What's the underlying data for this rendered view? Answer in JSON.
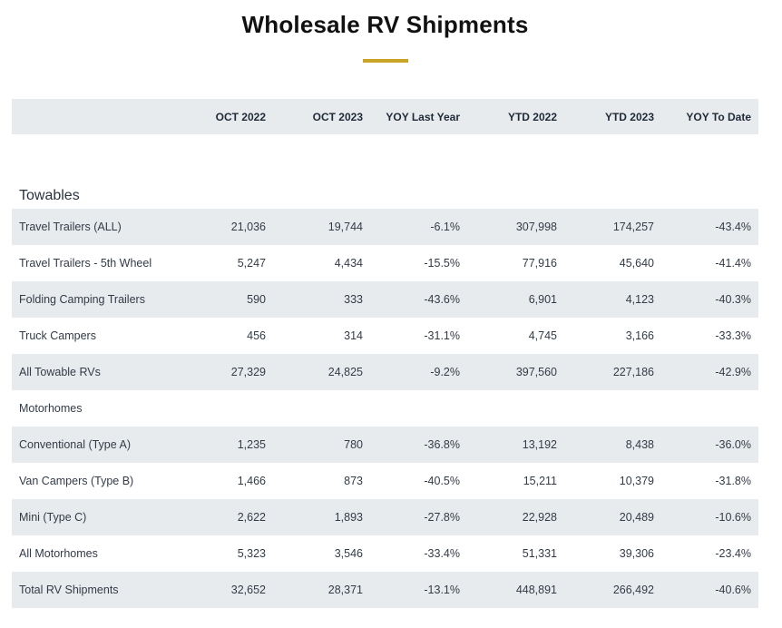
{
  "title": "Wholesale RV Shipments",
  "headers": [
    "",
    "OCT 2022",
    "OCT 2023",
    "YOY Last Year",
    "YTD 2022",
    "YTD 2023",
    "YOY To Date"
  ],
  "sections": {
    "towables": "Towables",
    "motorhomes": "Motorhomes"
  },
  "rows": [
    [
      "Travel Trailers (ALL)",
      "21,036",
      "19,744",
      "-6.1%",
      "307,998",
      "174,257",
      "-43.4%"
    ],
    [
      "Travel Trailers - 5th Wheel",
      "5,247",
      "4,434",
      "-15.5%",
      "77,916",
      "45,640",
      "-41.4%"
    ],
    [
      "Folding Camping Trailers",
      "590",
      "333",
      "-43.6%",
      "6,901",
      "4,123",
      "-40.3%"
    ],
    [
      "Truck Campers",
      "456",
      "314",
      "-31.1%",
      "4,745",
      "3,166",
      "-33.3%"
    ],
    [
      "All Towable RVs",
      "27,329",
      "24,825",
      "-9.2%",
      "397,560",
      "227,186",
      "-42.9%"
    ],
    [
      "Conventional (Type A)",
      "1,235",
      "780",
      "-36.8%",
      "13,192",
      "8,438",
      "-36.0%"
    ],
    [
      "Van Campers (Type B)",
      "1,466",
      "873",
      "-40.5%",
      "15,211",
      "10,379",
      "-31.8%"
    ],
    [
      "Mini (Type C)",
      "2,622",
      "1,893",
      "-27.8%",
      "22,928",
      "20,489",
      "-10.6%"
    ],
    [
      "All Motorhomes",
      "5,323",
      "3,546",
      "-33.4%",
      "51,331",
      "39,306",
      "-23.4%"
    ],
    [
      "Total RV Shipments",
      "32,652",
      "28,371",
      "-13.1%",
      "448,891",
      "266,492",
      "-40.6%"
    ]
  ]
}
